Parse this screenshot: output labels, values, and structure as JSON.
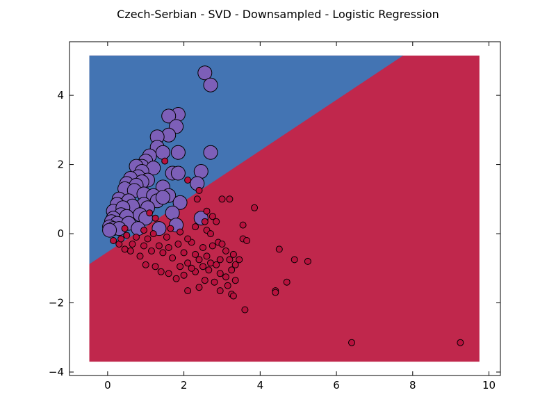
{
  "chart_data": {
    "type": "scatter",
    "title": "Czech-Serbian - SVD - Downsampled - Logistic Regression",
    "xlabel": "",
    "ylabel": "",
    "xlim": [
      -1,
      10.3
    ],
    "ylim": [
      -4.1,
      5.55
    ],
    "x_ticks": [
      0,
      2,
      4,
      6,
      8,
      10
    ],
    "y_ticks": [
      4,
      2,
      0,
      -2,
      -4
    ],
    "x_tick_labels": [
      "0",
      "2",
      "4",
      "6",
      "8",
      "10"
    ],
    "y_tick_labels": [
      "4",
      "2",
      "0",
      "−2",
      "−4"
    ],
    "grid": false,
    "legend": "none",
    "decision_regions": {
      "extent": {
        "x": [
          -0.48,
          9.75
        ],
        "y": [
          -3.7,
          5.15
        ]
      },
      "boundary_line": [
        [
          -0.48,
          -0.88
        ],
        [
          7.75,
          5.15
        ]
      ],
      "upper_region_color": "#4374B3",
      "lower_region_color": "#C0274C"
    },
    "series": [
      {
        "color": "#7D5FB8",
        "marker": "large-circle",
        "points": [
          [
            2.55,
            4.65
          ],
          [
            2.7,
            4.3
          ],
          [
            1.85,
            3.45
          ],
          [
            1.6,
            3.4
          ],
          [
            1.8,
            3.1
          ],
          [
            1.6,
            2.85
          ],
          [
            1.3,
            2.8
          ],
          [
            1.3,
            2.5
          ],
          [
            1.85,
            2.35
          ],
          [
            1.45,
            2.35
          ],
          [
            2.7,
            2.35
          ],
          [
            1.1,
            2.25
          ],
          [
            1.0,
            2.1
          ],
          [
            0.9,
            1.95
          ],
          [
            0.75,
            1.95
          ],
          [
            1.2,
            1.9
          ],
          [
            0.9,
            1.8
          ],
          [
            1.7,
            1.75
          ],
          [
            1.85,
            1.75
          ],
          [
            2.45,
            1.8
          ],
          [
            0.8,
            1.65
          ],
          [
            0.6,
            1.6
          ],
          [
            1.05,
            1.55
          ],
          [
            0.9,
            1.5
          ],
          [
            2.35,
            1.45
          ],
          [
            0.5,
            1.45
          ],
          [
            0.75,
            1.4
          ],
          [
            1.45,
            1.35
          ],
          [
            0.45,
            1.3
          ],
          [
            0.7,
            1.25
          ],
          [
            0.95,
            1.15
          ],
          [
            1.2,
            1.1
          ],
          [
            1.6,
            1.1
          ],
          [
            0.3,
            1.0
          ],
          [
            1.3,
            0.95
          ],
          [
            0.55,
            0.95
          ],
          [
            0.95,
            0.85
          ],
          [
            1.45,
            1.05
          ],
          [
            1.9,
            0.9
          ],
          [
            0.25,
            0.85
          ],
          [
            0.65,
            0.8
          ],
          [
            1.05,
            0.75
          ],
          [
            0.15,
            0.65
          ],
          [
            0.4,
            0.75
          ],
          [
            0.35,
            0.55
          ],
          [
            0.85,
            0.55
          ],
          [
            1.7,
            0.6
          ],
          [
            2.45,
            0.45
          ],
          [
            0.15,
            0.45
          ],
          [
            0.5,
            0.5
          ],
          [
            1.0,
            0.45
          ],
          [
            0.1,
            0.35
          ],
          [
            0.25,
            0.3
          ],
          [
            0.55,
            0.3
          ],
          [
            0.8,
            0.15
          ],
          [
            1.35,
            0.15
          ],
          [
            1.8,
            0.25
          ],
          [
            0.05,
            0.2
          ],
          [
            0.15,
            0.15
          ],
          [
            0.3,
            0.15
          ],
          [
            0.05,
            0.1
          ]
        ]
      },
      {
        "color": "#B8123E",
        "marker": "small-circle",
        "points": [
          [
            1.5,
            2.1
          ],
          [
            2.1,
            1.55
          ],
          [
            2.4,
            1.25
          ],
          [
            2.35,
            1.0
          ],
          [
            3.0,
            1.0
          ],
          [
            3.2,
            1.0
          ],
          [
            3.85,
            0.75
          ],
          [
            2.6,
            0.65
          ],
          [
            2.75,
            0.5
          ],
          [
            2.55,
            0.35
          ],
          [
            2.85,
            0.35
          ],
          [
            3.55,
            0.25
          ],
          [
            2.3,
            0.2
          ],
          [
            2.6,
            0.1
          ],
          [
            2.7,
            0.0
          ],
          [
            3.55,
            -0.15
          ],
          [
            3.65,
            -0.2
          ],
          [
            2.2,
            -0.25
          ],
          [
            2.9,
            -0.25
          ],
          [
            3.0,
            -0.3
          ],
          [
            4.5,
            -0.45
          ],
          [
            2.5,
            -0.4
          ],
          [
            2.75,
            -0.35
          ],
          [
            3.1,
            -0.5
          ],
          [
            3.3,
            -0.6
          ],
          [
            2.3,
            -0.6
          ],
          [
            2.6,
            -0.65
          ],
          [
            2.95,
            -0.75
          ],
          [
            3.2,
            -0.75
          ],
          [
            3.45,
            -0.75
          ],
          [
            4.9,
            -0.75
          ],
          [
            5.25,
            -0.8
          ],
          [
            2.4,
            -0.75
          ],
          [
            2.7,
            -0.85
          ],
          [
            2.85,
            -0.9
          ],
          [
            3.35,
            -0.9
          ],
          [
            2.1,
            -0.85
          ],
          [
            2.5,
            -0.95
          ],
          [
            3.25,
            -1.05
          ],
          [
            2.3,
            -1.1
          ],
          [
            2.65,
            -1.05
          ],
          [
            2.95,
            -1.15
          ],
          [
            3.1,
            -1.25
          ],
          [
            3.35,
            -1.35
          ],
          [
            4.7,
            -1.4
          ],
          [
            2.55,
            -1.35
          ],
          [
            2.8,
            -1.4
          ],
          [
            3.15,
            -1.5
          ],
          [
            2.4,
            -1.55
          ],
          [
            4.4,
            -1.65
          ],
          [
            2.1,
            -1.65
          ],
          [
            2.95,
            -1.65
          ],
          [
            3.25,
            -1.75
          ],
          [
            3.3,
            -1.8
          ],
          [
            3.6,
            -2.2
          ],
          [
            2.0,
            -1.2
          ],
          [
            1.8,
            -1.3
          ],
          [
            1.6,
            -1.15
          ],
          [
            1.4,
            -1.1
          ],
          [
            1.25,
            -0.95
          ],
          [
            1.0,
            -0.9
          ],
          [
            1.9,
            -0.95
          ],
          [
            2.2,
            -1.0
          ],
          [
            1.7,
            -0.7
          ],
          [
            2.0,
            -0.55
          ],
          [
            1.45,
            -0.55
          ],
          [
            0.85,
            -0.65
          ],
          [
            0.6,
            -0.5
          ],
          [
            0.45,
            -0.45
          ],
          [
            0.3,
            -0.3
          ],
          [
            0.15,
            -0.2
          ],
          [
            0.35,
            -0.15
          ],
          [
            0.65,
            -0.3
          ],
          [
            0.95,
            -0.35
          ],
          [
            1.15,
            -0.5
          ],
          [
            1.35,
            -0.35
          ],
          [
            1.6,
            -0.4
          ],
          [
            1.85,
            -0.3
          ],
          [
            2.1,
            -0.15
          ],
          [
            1.9,
            0.05
          ],
          [
            0.75,
            -0.1
          ],
          [
            1.05,
            -0.15
          ],
          [
            1.2,
            0.0
          ],
          [
            0.95,
            0.1
          ],
          [
            1.55,
            -0.1
          ],
          [
            1.65,
            0.15
          ],
          [
            0.5,
            -0.05
          ],
          [
            1.1,
            0.6
          ],
          [
            1.25,
            0.45
          ],
          [
            0.45,
            0.15
          ],
          [
            4.4,
            -1.7
          ],
          [
            6.4,
            -3.15
          ],
          [
            9.25,
            -3.15
          ]
        ]
      }
    ]
  }
}
